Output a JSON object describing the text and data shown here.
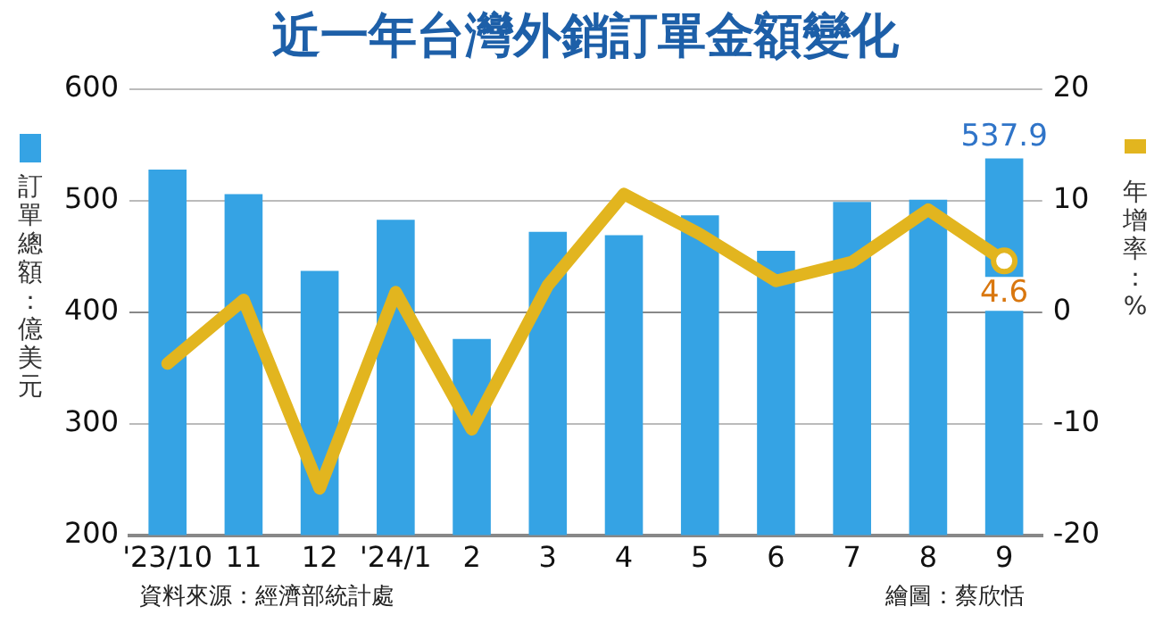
{
  "chart_data": {
    "type": "bar",
    "title": "近一年台灣外銷訂單金額變化",
    "ylabel": "訂單總額：億美元",
    "y2label": "年增率：%",
    "categories": [
      "'23/10",
      "11",
      "12",
      "'24/1",
      "2",
      "3",
      "4",
      "5",
      "6",
      "7",
      "8",
      "9"
    ],
    "series": [
      {
        "color": "#35a3e4",
        "values": [
          528,
          506,
          437,
          483,
          376,
          472,
          469,
          487,
          455,
          499,
          501,
          537.9
        ],
        "value_labels": [
          null,
          null,
          null,
          null,
          null,
          null,
          null,
          null,
          null,
          null,
          null,
          "537.9"
        ]
      },
      {
        "type": "line",
        "axis": "y2",
        "color": "#e2b51f",
        "values": [
          -4.6,
          1.1,
          -15.8,
          1.8,
          -10.5,
          2.4,
          10.6,
          7,
          2.8,
          4.5,
          9.2,
          4.6
        ],
        "value_labels": [
          null,
          null,
          null,
          null,
          null,
          null,
          null,
          null,
          null,
          null,
          null,
          "4.6"
        ]
      }
    ],
    "ylim": [
      200,
      600
    ],
    "yticks": [
      200,
      300,
      400,
      500,
      600
    ],
    "y2lim": [
      -20,
      20
    ],
    "y2ticks": [
      -20,
      -10,
      0,
      10,
      20
    ],
    "grid": "y",
    "legend": false,
    "marker": "none",
    "line_style": "solid",
    "annotations": [
      "資料來源：經濟部統計處",
      "繪圖：蔡欣恬"
    ]
  }
}
